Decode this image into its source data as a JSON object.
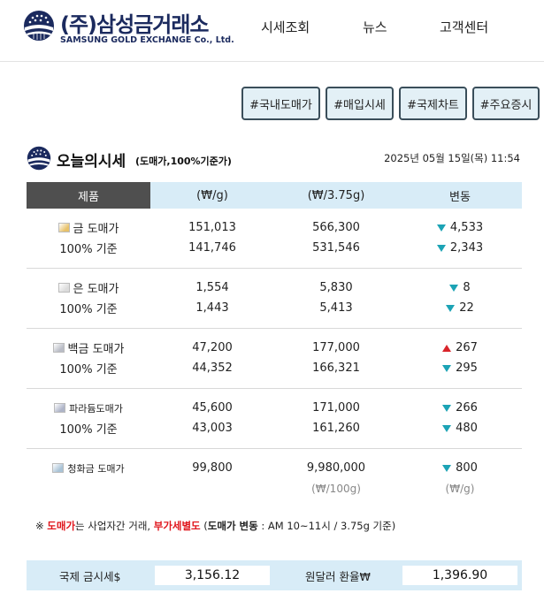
{
  "header": {
    "brand_ko": "(주)삼성금거래소",
    "brand_en": "SAMSUNG GOLD EXCHANGE Co., Ltd.",
    "nav": [
      "시세조회",
      "뉴스",
      "고객센터"
    ]
  },
  "tags": [
    "#국내도매가",
    "#매입시세",
    "#국제차트",
    "#주요증시"
  ],
  "section": {
    "title": "오늘의시세",
    "subtitle": "(도매가,100%기준가)",
    "date": "2025년 05월 15일(목) 11:54"
  },
  "table": {
    "headers": [
      "제품",
      "(₩/g)",
      "(₩/3.75g)",
      "변동"
    ],
    "groups": [
      {
        "icon_color": "#e8c26a",
        "rows": [
          {
            "name": "금 도매가",
            "per_g": "151,013",
            "per_don": "566,300",
            "dir": "down",
            "chg": "4,533"
          },
          {
            "name": "100% 기준",
            "per_g": "141,746",
            "per_don": "531,546",
            "dir": "down",
            "chg": "2,343"
          }
        ]
      },
      {
        "icon_color": "#dcdcdc",
        "rows": [
          {
            "name": "은 도매가",
            "per_g": "1,554",
            "per_don": "5,830",
            "dir": "down",
            "chg": "8"
          },
          {
            "name": "100% 기준",
            "per_g": "1,443",
            "per_don": "5,413",
            "dir": "down",
            "chg": "22"
          }
        ]
      },
      {
        "icon_color": "#b9bcc6",
        "rows": [
          {
            "name": "백금 도매가",
            "per_g": "47,200",
            "per_don": "177,000",
            "dir": "up",
            "chg": "267"
          },
          {
            "name": "100% 기준",
            "per_g": "44,352",
            "per_don": "166,321",
            "dir": "down",
            "chg": "295"
          }
        ]
      },
      {
        "icon_color": "#aeb4c8",
        "rows": [
          {
            "name": "파라듐도매가",
            "per_g": "45,600",
            "per_don": "171,000",
            "dir": "down",
            "chg": "266"
          },
          {
            "name": "100% 기준",
            "per_g": "43,003",
            "per_don": "161,260",
            "dir": "down",
            "chg": "480"
          }
        ]
      },
      {
        "icon_color": "#a9c3d6",
        "rows": [
          {
            "name": "청화금 도매가",
            "per_g": "99,800",
            "per_don": "9,980,000",
            "dir": "down",
            "chg": "800"
          }
        ],
        "units": {
          "per_don": "(₩/100g)",
          "chg": "(₩/g)"
        }
      }
    ]
  },
  "note": {
    "prefix": "※ ",
    "wholesale": "도매가",
    "mid1": "는 사업자간 거래, ",
    "vat": "부가세별도",
    "mid2": " (",
    "chg_label": "도매가 변동",
    "suffix": " : AM 10~11시 / 3.75g 기준)"
  },
  "bottom": {
    "intl_label": "국제 금시세$",
    "intl_value": "3,156.12",
    "fx_label": "원달러 환율₩",
    "fx_value": "1,396.90"
  }
}
